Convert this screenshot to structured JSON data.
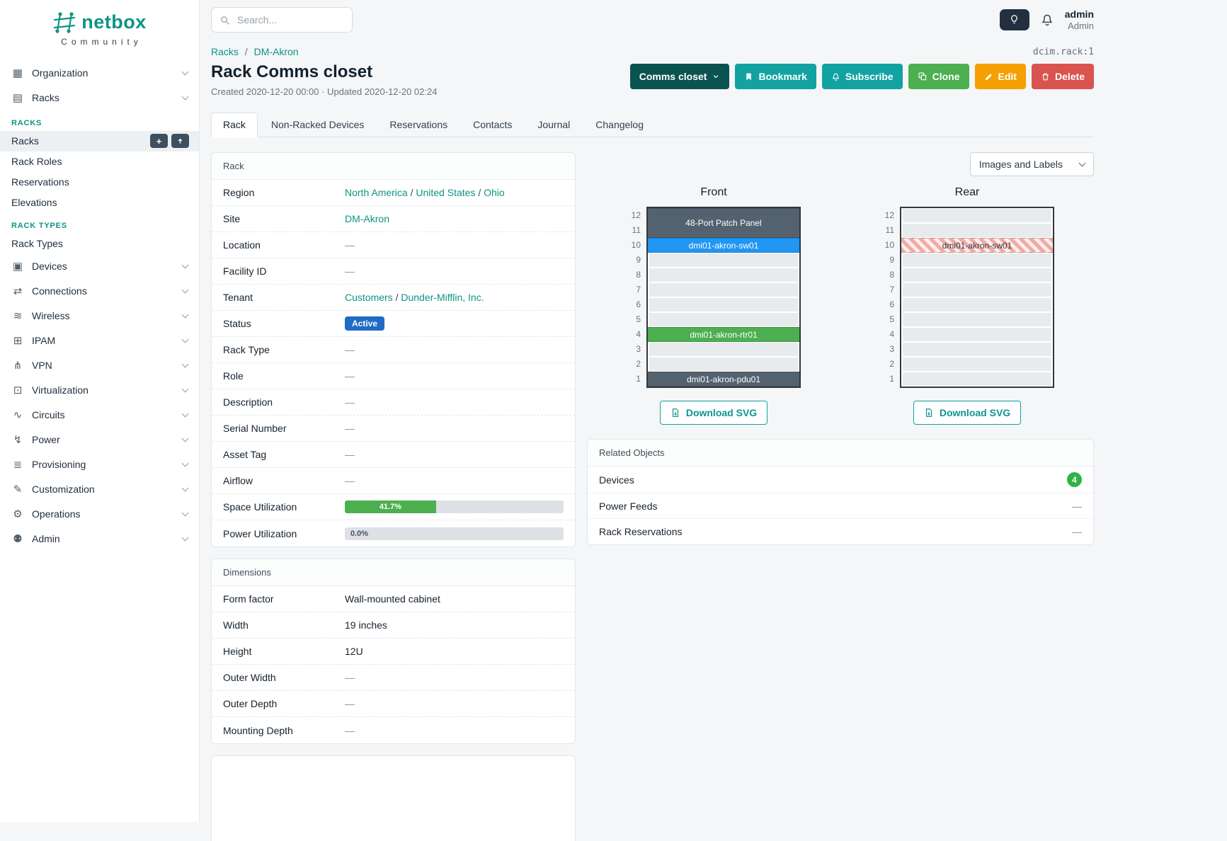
{
  "brand": {
    "name": "netbox",
    "community": "Community"
  },
  "colors": {
    "brand_teal": "#0e9384",
    "button_teal": "#12a2a2",
    "context_dark": "#0b5351",
    "clone_green": "#4caf50",
    "edit_orange": "#f59f00",
    "delete_red": "#d9544f",
    "status_blue": "#206bc4",
    "progress_green": "#4caf50",
    "device_blue": "#2196f3",
    "device_green": "#4caf50",
    "device_slate": "#54626f",
    "badge_green": "#2fb344"
  },
  "topbar": {
    "search_placeholder": "Search...",
    "user": {
      "name": "admin",
      "role": "Admin"
    }
  },
  "sidebar": {
    "items": [
      {
        "label": "Organization",
        "icon": "organization-icon",
        "glyph": "▦"
      },
      {
        "label": "Racks",
        "icon": "racks-icon",
        "glyph": "▤",
        "expanded": true,
        "sections": [
          {
            "header": "RACKS",
            "links": [
              {
                "label": "Racks",
                "active": true
              },
              {
                "label": "Rack Roles"
              },
              {
                "label": "Reservations"
              },
              {
                "label": "Elevations"
              }
            ]
          },
          {
            "header": "RACK TYPES",
            "links": [
              {
                "label": "Rack Types"
              }
            ]
          }
        ]
      },
      {
        "label": "Devices",
        "icon": "devices-icon",
        "glyph": "▣"
      },
      {
        "label": "Connections",
        "icon": "connections-icon",
        "glyph": "⇄"
      },
      {
        "label": "Wireless",
        "icon": "wireless-icon",
        "glyph": "≋"
      },
      {
        "label": "IPAM",
        "icon": "ipam-icon",
        "glyph": "⊞"
      },
      {
        "label": "VPN",
        "icon": "vpn-icon",
        "glyph": "⋔"
      },
      {
        "label": "Virtualization",
        "icon": "virtualization-icon",
        "glyph": "⊡"
      },
      {
        "label": "Circuits",
        "icon": "circuits-icon",
        "glyph": "∿"
      },
      {
        "label": "Power",
        "icon": "power-icon",
        "glyph": "↯"
      },
      {
        "label": "Provisioning",
        "icon": "provisioning-icon",
        "glyph": "≣"
      },
      {
        "label": "Customization",
        "icon": "customization-icon",
        "glyph": "✎"
      },
      {
        "label": "Operations",
        "icon": "operations-icon",
        "glyph": "⚙"
      },
      {
        "label": "Admin",
        "icon": "admin-icon",
        "glyph": "⚉"
      }
    ]
  },
  "breadcrumb": {
    "items": [
      "Racks",
      "DM-Akron"
    ],
    "object_ref": "dcim.rack:1"
  },
  "page": {
    "title": "Rack Comms closet",
    "meta": "Created 2020-12-20 00:00 · Updated 2020-12-20 02:24"
  },
  "actions": {
    "context": "Comms closet",
    "bookmark": "Bookmark",
    "subscribe": "Subscribe",
    "clone": "Clone",
    "edit": "Edit",
    "delete": "Delete"
  },
  "tabs": [
    {
      "label": "Rack",
      "active": true
    },
    {
      "label": "Non-Racked Devices"
    },
    {
      "label": "Reservations"
    },
    {
      "label": "Contacts"
    },
    {
      "label": "Journal"
    },
    {
      "label": "Changelog"
    }
  ],
  "rack_card": {
    "title": "Rack",
    "rows": [
      {
        "label": "Region",
        "kind": "links",
        "links": [
          "North America",
          "United States",
          "Ohio"
        ]
      },
      {
        "label": "Site",
        "kind": "links",
        "links": [
          "DM-Akron"
        ]
      },
      {
        "label": "Location",
        "kind": "text",
        "value": "—"
      },
      {
        "label": "Facility ID",
        "kind": "text",
        "value": "—"
      },
      {
        "label": "Tenant",
        "kind": "links",
        "links": [
          "Customers",
          "Dunder-Mifflin, Inc."
        ]
      },
      {
        "label": "Status",
        "kind": "badge",
        "value": "Active"
      },
      {
        "label": "Rack Type",
        "kind": "text",
        "value": "—"
      },
      {
        "label": "Role",
        "kind": "text",
        "value": "—"
      },
      {
        "label": "Description",
        "kind": "text",
        "value": "—"
      },
      {
        "label": "Serial Number",
        "kind": "text",
        "value": "—"
      },
      {
        "label": "Asset Tag",
        "kind": "text",
        "value": "—"
      },
      {
        "label": "Airflow",
        "kind": "text",
        "value": "—"
      },
      {
        "label": "Space Utilization",
        "kind": "progress",
        "percent": 41.7,
        "text": "41.7%",
        "color": "#4caf50"
      },
      {
        "label": "Power Utilization",
        "kind": "progress",
        "percent": 0,
        "text": "0.0%",
        "color": "#4caf50"
      }
    ]
  },
  "dimensions_card": {
    "title": "Dimensions",
    "rows": [
      {
        "label": "Form factor",
        "kind": "text",
        "value": "Wall-mounted cabinet"
      },
      {
        "label": "Width",
        "kind": "text",
        "value": "19 inches"
      },
      {
        "label": "Height",
        "kind": "text",
        "value": "12U"
      },
      {
        "label": "Outer Width",
        "kind": "text",
        "value": "—"
      },
      {
        "label": "Outer Depth",
        "kind": "text",
        "value": "—"
      },
      {
        "label": "Mounting Depth",
        "kind": "text",
        "value": "—"
      }
    ]
  },
  "elevations": {
    "control": "Images and Labels",
    "download_label": "Download SVG",
    "unit_count": 12,
    "front": {
      "title": "Front",
      "devices": [
        {
          "name": "48-Port Patch Panel",
          "top_unit": 12,
          "height": 2,
          "color": "#54626f",
          "text": "#ffffff"
        },
        {
          "name": "dmi01-akron-sw01",
          "top_unit": 10,
          "height": 1,
          "color": "#2196f3",
          "text": "#ffffff"
        },
        {
          "name": "dmi01-akron-rtr01",
          "top_unit": 4,
          "height": 1,
          "color": "#4caf50",
          "text": "#ffffff"
        },
        {
          "name": "dmi01-akron-pdu01",
          "top_unit": 1,
          "height": 1,
          "color": "#54626f",
          "text": "#ffffff"
        }
      ]
    },
    "rear": {
      "title": "Rear",
      "devices": [
        {
          "name": "dmi01-akron-sw01",
          "top_unit": 10,
          "height": 1,
          "striped": true,
          "text": "#343a40"
        }
      ]
    }
  },
  "related": {
    "title": "Related Objects",
    "rows": [
      {
        "label": "Devices",
        "badge": "4"
      },
      {
        "label": "Power Feeds",
        "value": "—"
      },
      {
        "label": "Rack Reservations",
        "value": "—"
      }
    ]
  }
}
